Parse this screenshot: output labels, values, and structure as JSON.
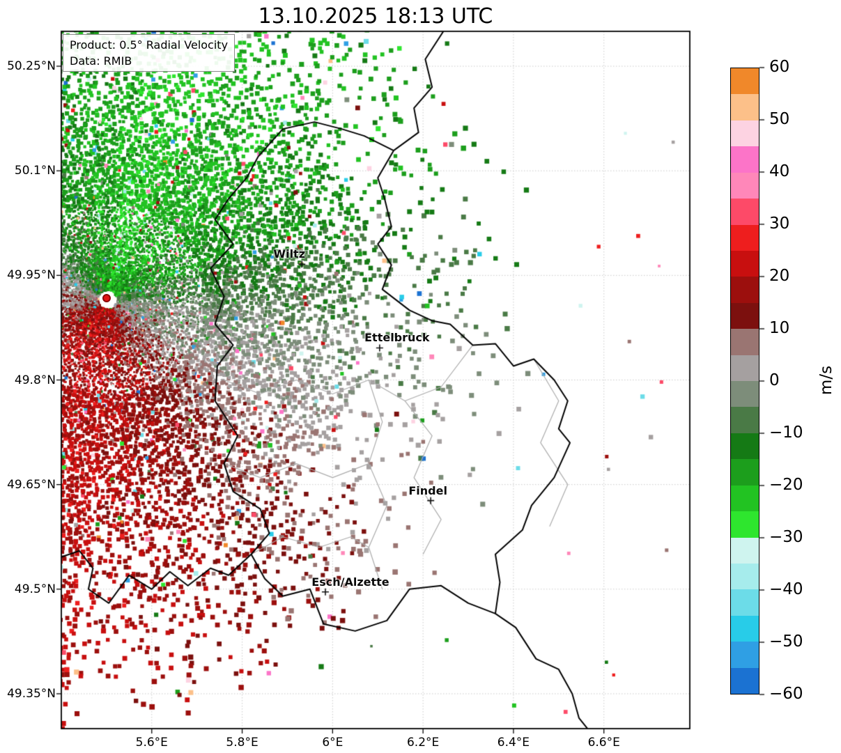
{
  "title": "13.10.2025 18:13 UTC",
  "product_box": {
    "line1": "Product: 0.5° Radial Velocity",
    "line2": "Data: RMIB"
  },
  "axes": {
    "extent": {
      "lon_min": 5.4,
      "lon_max": 6.79,
      "lat_min": 49.3,
      "lat_max": 50.3
    },
    "x_ticks": [
      {
        "value": 5.6,
        "label": "5.6°E"
      },
      {
        "value": 5.8,
        "label": "5.8°E"
      },
      {
        "value": 6.0,
        "label": "6°E"
      },
      {
        "value": 6.2,
        "label": "6.2°E"
      },
      {
        "value": 6.4,
        "label": "6.4°E"
      },
      {
        "value": 6.6,
        "label": "6.6°E"
      }
    ],
    "y_ticks": [
      {
        "value": 50.25,
        "label": "50.25°N"
      },
      {
        "value": 50.1,
        "label": "50.1°N"
      },
      {
        "value": 49.95,
        "label": "49.95°N"
      },
      {
        "value": 49.8,
        "label": "49.8°N"
      },
      {
        "value": 49.65,
        "label": "49.65°N"
      },
      {
        "value": 49.5,
        "label": "49.5°N"
      },
      {
        "value": 49.35,
        "label": "49.35°N"
      }
    ]
  },
  "colorbar": {
    "label": "m/s",
    "min": -60,
    "max": 60,
    "ticks": [
      {
        "value": 60,
        "label": "60"
      },
      {
        "value": 50,
        "label": "50"
      },
      {
        "value": 40,
        "label": "40"
      },
      {
        "value": 30,
        "label": "30"
      },
      {
        "value": 20,
        "label": "20"
      },
      {
        "value": 10,
        "label": "10"
      },
      {
        "value": 0,
        "label": "0"
      },
      {
        "value": -10,
        "label": "−10"
      },
      {
        "value": -20,
        "label": "−20"
      },
      {
        "value": -30,
        "label": "−30"
      },
      {
        "value": -40,
        "label": "−40"
      },
      {
        "value": -50,
        "label": "−50"
      },
      {
        "value": -60,
        "label": "−60"
      }
    ],
    "colors": [
      "#1b72d2",
      "#2f9fe4",
      "#28cce8",
      "#6cdce8",
      "#a6ecec",
      "#cff4ef",
      "#2ee62e",
      "#22c322",
      "#1c9e1c",
      "#157a15",
      "#4a7a46",
      "#7d8d7a",
      "#a5a0a0",
      "#9a7572",
      "#7c100e",
      "#9c0f0d",
      "#c80f0f",
      "#ee1e1e",
      "#fd4a68",
      "#ff87b9",
      "#fc74c8",
      "#fdd3e2",
      "#fcc089",
      "#f0882a"
    ]
  },
  "radar": {
    "lon": 5.503,
    "lat": 49.915,
    "dot_color": "#df1414"
  },
  "cities": [
    {
      "name": "Wiltz",
      "lon": 5.932,
      "lat": 49.966,
      "label_offset": [
        -18,
        -24
      ]
    },
    {
      "name": "Ettelbruck",
      "lon": 6.104,
      "lat": 49.846,
      "label_offset": [
        25,
        -24
      ]
    },
    {
      "name": "Findel",
      "lon": 6.217,
      "lat": 49.627,
      "label_offset": [
        -4,
        -24
      ]
    },
    {
      "name": "Esch/Alzette",
      "lon": 5.984,
      "lat": 49.496,
      "label_offset": [
        36,
        -24
      ]
    }
  ],
  "borders": {
    "national": [
      [
        [
          6.135,
          50.129
        ],
        [
          6.1,
          50.09
        ],
        [
          6.115,
          50.06
        ],
        [
          6.13,
          50.02
        ],
        [
          6.1,
          49.995
        ],
        [
          6.13,
          49.965
        ],
        [
          6.11,
          49.93
        ],
        [
          6.17,
          49.9
        ],
        [
          6.22,
          49.885
        ],
        [
          6.26,
          49.88
        ],
        [
          6.31,
          49.85
        ],
        [
          6.36,
          49.852
        ],
        [
          6.4,
          49.82
        ],
        [
          6.445,
          49.83
        ],
        [
          6.49,
          49.8
        ],
        [
          6.52,
          49.77
        ],
        [
          6.5,
          49.73
        ],
        [
          6.525,
          49.71
        ],
        [
          6.49,
          49.66
        ],
        [
          6.44,
          49.62
        ],
        [
          6.42,
          49.585
        ],
        [
          6.36,
          49.55
        ],
        [
          6.37,
          49.51
        ],
        [
          6.36,
          49.465
        ],
        [
          6.3,
          49.48
        ],
        [
          6.24,
          49.505
        ],
        [
          6.17,
          49.5
        ],
        [
          6.12,
          49.455
        ],
        [
          6.05,
          49.44
        ],
        [
          5.98,
          49.45
        ],
        [
          5.95,
          49.5
        ],
        [
          5.89,
          49.49
        ],
        [
          5.85,
          49.515
        ],
        [
          5.82,
          49.55
        ],
        [
          5.86,
          49.58
        ],
        [
          5.84,
          49.615
        ],
        [
          5.78,
          49.64
        ],
        [
          5.76,
          49.68
        ],
        [
          5.79,
          49.72
        ],
        [
          5.74,
          49.77
        ],
        [
          5.745,
          49.82
        ],
        [
          5.78,
          49.85
        ],
        [
          5.74,
          49.88
        ],
        [
          5.76,
          49.92
        ],
        [
          5.73,
          49.96
        ],
        [
          5.78,
          49.995
        ],
        [
          5.74,
          50.03
        ],
        [
          5.77,
          50.06
        ],
        [
          5.81,
          50.09
        ],
        [
          5.835,
          50.12
        ],
        [
          5.89,
          50.16
        ],
        [
          5.96,
          50.17
        ],
        [
          6.02,
          50.16
        ],
        [
          6.07,
          50.15
        ],
        [
          6.135,
          50.129
        ]
      ],
      [
        [
          6.25,
          50.305
        ],
        [
          6.205,
          50.26
        ],
        [
          6.22,
          50.22
        ],
        [
          6.18,
          50.19
        ],
        [
          6.19,
          50.155
        ],
        [
          6.135,
          50.129
        ]
      ],
      [
        [
          6.36,
          49.465
        ],
        [
          6.405,
          49.445
        ],
        [
          6.45,
          49.4
        ],
        [
          6.5,
          49.385
        ],
        [
          6.53,
          49.35
        ],
        [
          6.545,
          49.315
        ],
        [
          6.57,
          49.295
        ]
      ],
      [
        [
          5.395,
          49.545
        ],
        [
          5.44,
          49.555
        ],
        [
          5.47,
          49.53
        ],
        [
          5.46,
          49.5
        ],
        [
          5.505,
          49.48
        ],
        [
          5.55,
          49.52
        ],
        [
          5.6,
          49.5
        ],
        [
          5.64,
          49.525
        ],
        [
          5.68,
          49.505
        ],
        [
          5.73,
          49.53
        ],
        [
          5.77,
          49.52
        ],
        [
          5.82,
          49.55
        ]
      ]
    ],
    "internal": [
      [
        [
          5.76,
          49.8
        ],
        [
          5.84,
          49.78
        ],
        [
          5.92,
          49.8
        ],
        [
          6.0,
          49.78
        ],
        [
          6.08,
          49.8
        ],
        [
          6.16,
          49.77
        ],
        [
          6.24,
          49.79
        ],
        [
          6.31,
          49.85
        ]
      ],
      [
        [
          6.08,
          49.8
        ],
        [
          6.11,
          49.74
        ],
        [
          6.08,
          49.68
        ],
        [
          6.12,
          49.62
        ],
        [
          6.08,
          49.56
        ],
        [
          6.11,
          49.5
        ]
      ],
      [
        [
          6.16,
          49.77
        ],
        [
          6.22,
          49.72
        ],
        [
          6.18,
          49.66
        ],
        [
          6.24,
          49.6
        ],
        [
          6.2,
          49.55
        ]
      ],
      [
        [
          5.82,
          49.55
        ],
        [
          5.89,
          49.575
        ],
        [
          5.97,
          49.56
        ],
        [
          6.04,
          49.575
        ],
        [
          6.08,
          49.56
        ]
      ],
      [
        [
          6.445,
          49.83
        ],
        [
          6.5,
          49.77
        ],
        [
          6.46,
          49.71
        ],
        [
          6.52,
          49.65
        ],
        [
          6.48,
          49.59
        ]
      ],
      [
        [
          5.76,
          49.68
        ],
        [
          5.84,
          49.66
        ],
        [
          5.92,
          49.68
        ],
        [
          6.0,
          49.66
        ],
        [
          6.08,
          49.68
        ]
      ]
    ]
  },
  "field": {
    "amplitude": 21,
    "green_direction_deg": -70,
    "noise": 6.5,
    "outlier_rate": 0.055,
    "seed": 11
  },
  "chart_data": {
    "type": "heatmap",
    "title": "13.10.2025 18:13 UTC",
    "product": "Product: 0.5° Radial Velocity",
    "data_source": "Data: RMIB",
    "units": "m/s",
    "value_range": [
      -60,
      60
    ],
    "colorbar_ticks": [
      60,
      50,
      40,
      30,
      20,
      10,
      0,
      -10,
      -20,
      -30,
      -40,
      -50,
      -60
    ],
    "x_axis": {
      "ticks": [
        5.6,
        5.8,
        6.0,
        6.2,
        6.4,
        6.6
      ],
      "tick_format": "°E",
      "range": [
        5.4,
        6.79
      ]
    },
    "y_axis": {
      "ticks": [
        50.25,
        50.1,
        49.95,
        49.8,
        49.65,
        49.5,
        49.35
      ],
      "tick_format": "°N",
      "range": [
        49.3,
        50.3
      ]
    },
    "grid": true,
    "legend_position": "right-colorbar",
    "radar_site": {
      "lon": 5.503,
      "lat": 49.915
    },
    "cities": [
      {
        "name": "Wiltz",
        "lon": 5.932,
        "lat": 49.966
      },
      {
        "name": "Ettelbruck",
        "lon": 6.104,
        "lat": 49.846
      },
      {
        "name": "Findel",
        "lon": 6.217,
        "lat": 49.627
      },
      {
        "name": "Esch/Alzette",
        "lon": 5.984,
        "lat": 49.496
      }
    ],
    "pattern": "Doppler radial-velocity PPI centered on radar at 5.50E/49.92N over Luxembourg: negative velocities (green, approx -10 to -30 m/s, toward radar) north and northeast of the site; positive velocities (dark red, approx +10 to +25 m/s, away) south-southwest; near-zero gray isodop band oriented WNW-ESE through the radar; echo density decreases with range (~0.9 deg max range), sparse speckle noise (cyan/pink/orange outliers) at far range."
  }
}
